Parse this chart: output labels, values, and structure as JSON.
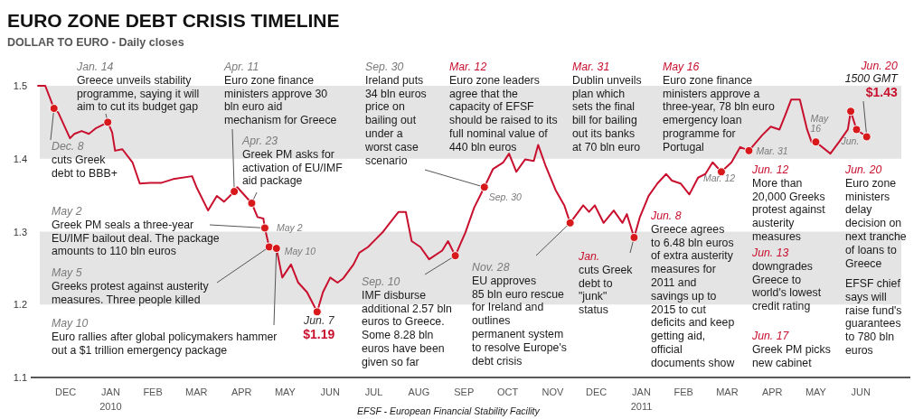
{
  "chart_data": {
    "type": "line",
    "title": "EURO ZONE DEBT CRISIS TIMELINE",
    "subtitle": "DOLLAR TO EURO - Daily closes",
    "xlim": [
      "2009-11-22",
      "2011-07-20"
    ],
    "xticks": [
      {
        "value": "2009-12-16",
        "label": "DEC"
      },
      {
        "value": "2010-01-16",
        "label": "JAN 2010"
      },
      {
        "value": "2010-02-14",
        "label": "FEB"
      },
      {
        "value": "2010-03-16",
        "label": "MAR"
      },
      {
        "value": "2010-04-16",
        "label": "APR"
      },
      {
        "value": "2010-05-16",
        "label": "MAY"
      },
      {
        "value": "2010-06-16",
        "label": "JUN"
      },
      {
        "value": "2010-07-16",
        "label": "JUL"
      },
      {
        "value": "2010-08-16",
        "label": "AUG"
      },
      {
        "value": "2010-09-16",
        "label": "SEP"
      },
      {
        "value": "2010-10-16",
        "label": "OCT"
      },
      {
        "value": "2010-11-16",
        "label": "NOV"
      },
      {
        "value": "2010-12-16",
        "label": "DEC"
      },
      {
        "value": "2011-01-16",
        "label": "JAN 2011"
      },
      {
        "value": "2011-02-14",
        "label": "FEB"
      },
      {
        "value": "2011-03-16",
        "label": "MAR"
      },
      {
        "value": "2011-04-16",
        "label": "APR"
      },
      {
        "value": "2011-05-16",
        "label": "MAY"
      },
      {
        "value": "2011-06-16",
        "label": "JUN"
      }
    ],
    "ylim": [
      1.1,
      1.5
    ],
    "yticks": [
      1.1,
      1.2,
      1.3,
      1.4,
      1.5
    ],
    "bands": [
      {
        "axis": "y",
        "from": 1.4,
        "to": 1.5,
        "color": "#e4e4e4"
      },
      {
        "axis": "y",
        "from": 1.2,
        "to": 1.3,
        "color": "#e4e4e4"
      }
    ],
    "series": [
      {
        "color": "#c8102e",
        "x": [
          "2009-11-27",
          "2009-12-02",
          "2009-12-08",
          "2009-12-11",
          "2009-12-19",
          "2009-12-22",
          "2009-12-27",
          "2010-01-01",
          "2010-01-06",
          "2010-01-14",
          "2010-01-17",
          "2010-01-19",
          "2010-01-24",
          "2010-01-31",
          "2010-02-05",
          "2010-02-12",
          "2010-02-20",
          "2010-02-28",
          "2010-03-13",
          "2010-03-16",
          "2010-03-24",
          "2010-03-30",
          "2010-04-04",
          "2010-04-11",
          "2010-04-13",
          "2010-04-23",
          "2010-04-27",
          "2010-05-01",
          "2010-05-02",
          "2010-05-05",
          "2010-05-10",
          "2010-05-14",
          "2010-05-20",
          "2010-05-25",
          "2010-05-31",
          "2010-06-07",
          "2010-06-11",
          "2010-06-16",
          "2010-06-21",
          "2010-06-25",
          "2010-07-02",
          "2010-07-06",
          "2010-07-12",
          "2010-07-17",
          "2010-07-22",
          "2010-07-27",
          "2010-08-02",
          "2010-08-07",
          "2010-08-11",
          "2010-08-17",
          "2010-08-23",
          "2010-09-01",
          "2010-09-05",
          "2010-09-10",
          "2010-09-17",
          "2010-09-23",
          "2010-09-30",
          "2010-10-06",
          "2010-10-13",
          "2010-10-17",
          "2010-10-22",
          "2010-10-28",
          "2010-11-03",
          "2010-11-06",
          "2010-11-11",
          "2010-11-18",
          "2010-11-24",
          "2010-11-28",
          "2010-12-07",
          "2010-12-11",
          "2010-12-15",
          "2010-12-21",
          "2010-12-28",
          "2011-01-03",
          "2011-01-06",
          "2011-01-11",
          "2011-01-15",
          "2011-01-21",
          "2011-01-27",
          "2011-02-02",
          "2011-02-06",
          "2011-02-12",
          "2011-02-18",
          "2011-02-24",
          "2011-03-01",
          "2011-03-06",
          "2011-03-12",
          "2011-03-19",
          "2011-03-25",
          "2011-03-31",
          "2011-04-09",
          "2011-04-15",
          "2011-04-21",
          "2011-04-25",
          "2011-04-29",
          "2011-05-05",
          "2011-05-10",
          "2011-05-13",
          "2011-05-16",
          "2011-05-26",
          "2011-06-01",
          "2011-06-07",
          "2011-06-09",
          "2011-06-13",
          "2011-06-20"
        ],
        "values": [
          1.5,
          1.5,
          1.469,
          1.463,
          1.428,
          1.434,
          1.438,
          1.434,
          1.442,
          1.45,
          1.436,
          1.411,
          1.413,
          1.395,
          1.366,
          1.367,
          1.367,
          1.372,
          1.376,
          1.361,
          1.329,
          1.349,
          1.341,
          1.355,
          1.361,
          1.339,
          1.32,
          1.318,
          1.305,
          1.279,
          1.277,
          1.237,
          1.255,
          1.23,
          1.217,
          1.19,
          1.217,
          1.237,
          1.23,
          1.236,
          1.255,
          1.271,
          1.279,
          1.289,
          1.299,
          1.312,
          1.327,
          1.327,
          1.287,
          1.279,
          1.262,
          1.274,
          1.287,
          1.267,
          1.299,
          1.333,
          1.361,
          1.386,
          1.395,
          1.407,
          1.382,
          1.399,
          1.397,
          1.419,
          1.391,
          1.357,
          1.336,
          1.312,
          1.336,
          1.327,
          1.336,
          1.312,
          1.329,
          1.312,
          1.324,
          1.292,
          1.32,
          1.349,
          1.366,
          1.379,
          1.37,
          1.366,
          1.351,
          1.374,
          1.379,
          1.395,
          1.382,
          1.395,
          1.416,
          1.411,
          1.432,
          1.444,
          1.44,
          1.46,
          1.481,
          1.481,
          1.44,
          1.423,
          1.423,
          1.407,
          1.423,
          1.44,
          1.465,
          1.44,
          1.43
        ]
      },
      {
        "type": "scatter",
        "color": "#d7191c",
        "marker": "circle",
        "x": [
          "2009-12-08",
          "2010-01-14",
          "2010-04-11",
          "2010-04-23",
          "2010-05-02",
          "2010-05-05",
          "2010-05-10",
          "2010-06-07",
          "2010-09-10",
          "2010-09-30",
          "2010-11-28",
          "2011-01-11",
          "2011-03-12",
          "2011-03-31",
          "2011-05-16",
          "2011-06-09",
          "2011-06-13",
          "2011-06-20"
        ],
        "values": [
          1.469,
          1.45,
          1.355,
          1.339,
          1.305,
          1.279,
          1.277,
          1.19,
          1.267,
          1.361,
          1.312,
          1.292,
          1.382,
          1.411,
          1.423,
          1.465,
          1.44,
          1.43
        ]
      }
    ],
    "annotations": [
      {
        "text": "Dec. 8\ncuts Greek\ndebt to BBB+",
        "x": "2009-12-08",
        "y": 1.469
      },
      {
        "text": "Jan. 14\nGreece unveils stability\nprogramme, saying it will\naim to cut its budget gap",
        "x": "2010-01-14",
        "y": 1.45
      },
      {
        "text": "Apr. 11\nEuro zone finance\nministers approve 30\nbln euro aid\nmechanism for Greece",
        "x": "2010-04-11",
        "y": 1.355
      },
      {
        "text": "Apr. 23\nGreek PM asks for\nactivation of EU/IMF\naid package",
        "x": "2010-04-23",
        "y": 1.339
      },
      {
        "text": "May 2\nGreek PM seals a three-year\nEU/IMF bailout deal. The package\namounts to 110 bln euros",
        "x": "2010-05-02",
        "y": 1.305
      },
      {
        "text": "May 5\nGreeks protest against austerity\nmeasures. Three people killed",
        "x": "2010-05-05",
        "y": 1.279
      },
      {
        "text": "May 10\nEuro rallies after global policymakers hammer\nout a $1 trillion emergency package",
        "x": "2010-05-10",
        "y": 1.277
      },
      {
        "text": "Jun. 7\n$1.19",
        "x": "2010-06-07",
        "y": 1.19
      },
      {
        "text": "Sep. 30\nIreland puts\n34 bln euros\nprice on\nbailing out\nunder a\nworst case\nscenario",
        "x": "2010-09-30",
        "y": 1.361
      },
      {
        "text": "Sep. 10\nIMF disburse\nadditional 2.57 bln\neuros to Greece.\nSome 8.28 bln\neuros have been\ngiven so far",
        "x": "2010-09-10",
        "y": 1.267
      },
      {
        "text": "Nov. 28\nEU approves\n85 bln euro rescue\nfor Ireland and\noutlines\npermanent system\nto resolve Europe's\ndebt crisis",
        "x": "2010-11-28",
        "y": 1.312
      },
      "Mar. 12\nEuro zone leaders\nagree that the\ncapacity of EFSF\nshould be raised to its\nfull nominal value of\n440 bln euros",
      "Mar. 31\nDublin unveils\nplan which\nsets the final\nbill for bailing\nout its banks\nat 70 bln euro",
      {
        "text": "Jan.\ncuts Greek\ndebt to\n\"junk\"\nstatus",
        "x": "2011-01-11",
        "y": 1.292
      },
      "Jun. 8\nGreece agrees\nto 6.48 bln euros\nof extra austerity\nmeasures for\n2011 and\nsavings up to\n2015 to cut\ndeficits and keep\ngetting aid,\nofficial\ndocuments show",
      "May 16\nEuro zone finance\nministers approve a\nthree-year, 78 bln euro\nemergency loan\nprogramme for\nPortugal",
      "Jun. 12\nMore than\n20,000 Greeks\nprotest against\nausterity\nmeasures",
      "Jun. 13\ndowngrades\nGreece to\nworld's lowest\ncredit rating",
      "Jun. 17\nGreek PM picks\nnew cabinet",
      "Jun. 20\nEuro zone\nministers\ndelay\ndecision on\nnext tranche\nof loans to\nGreece",
      "EFSF chief\nsays will\nraise fund's\nguarantees\nto 780 bln\neuros",
      {
        "text": "Jun. 20\n1500 GMT\n$1.43",
        "x": "2011-06-20",
        "y": 1.43
      },
      {
        "text": "May 2",
        "x": "2010-05-02",
        "y": 1.305
      },
      {
        "text": "May 10",
        "x": "2010-05-10",
        "y": 1.277
      },
      {
        "text": "Sep. 30",
        "x": "2010-09-30",
        "y": 1.361
      },
      {
        "text": "Mar. 12",
        "x": "2011-03-12",
        "y": 1.382
      },
      {
        "text": "Mar. 31",
        "x": "2011-03-31",
        "y": 1.411
      },
      {
        "text": "May\n16",
        "x": "2011-05-16",
        "y": 1.423
      },
      {
        "text": "Jun.",
        "x": "2011-06-13",
        "y": 1.44
      },
      "EFSF - European Financial Stability Facility"
    ]
  }
}
